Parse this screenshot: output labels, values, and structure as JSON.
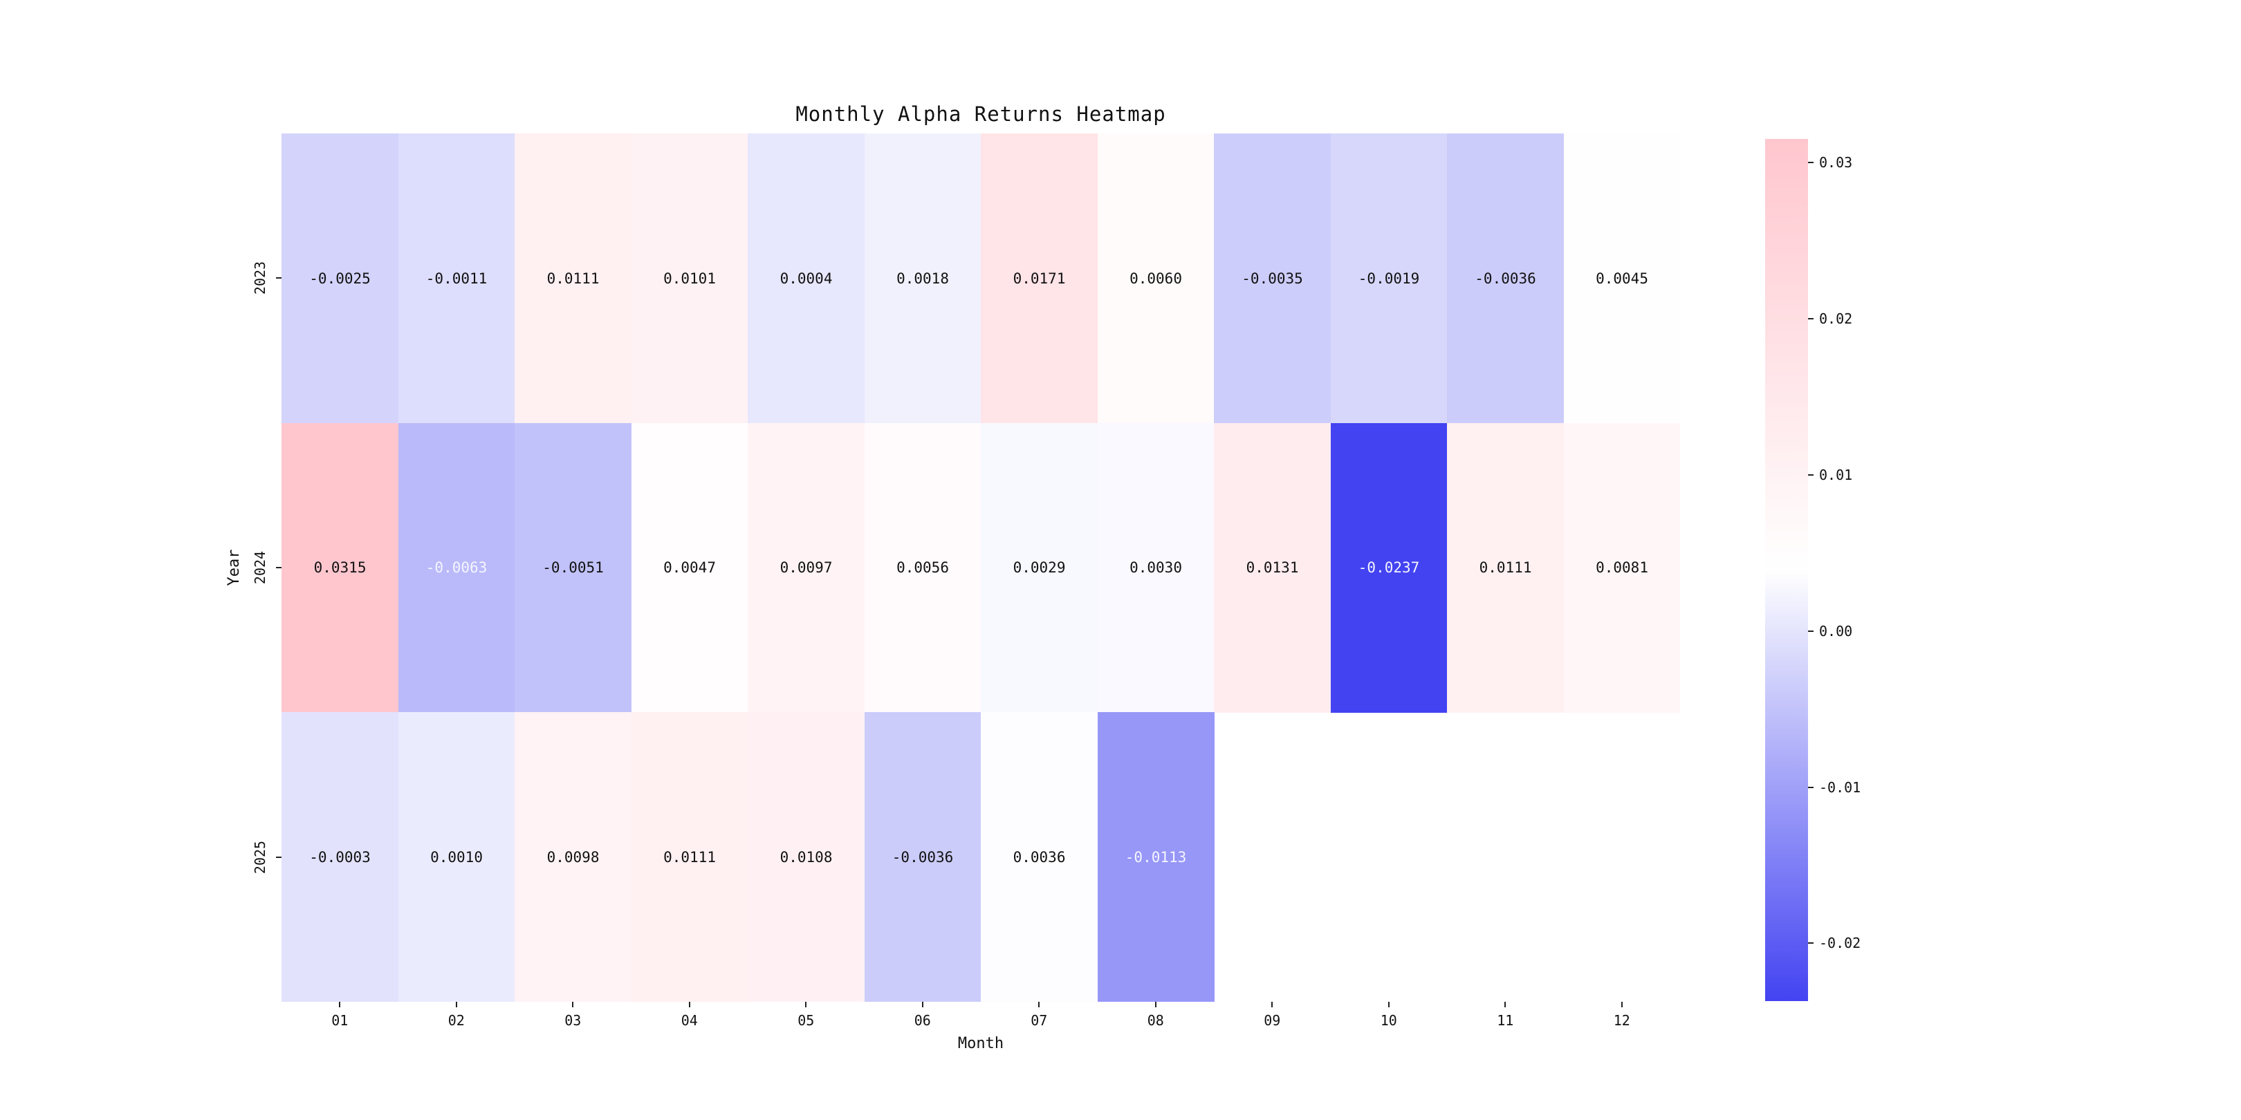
{
  "figure": {
    "background": "#ffffff"
  },
  "chart_data": {
    "type": "heatmap",
    "title": "Monthly Alpha Returns Heatmap",
    "xlabel": "Month",
    "ylabel": "Year",
    "x_categories": [
      "01",
      "02",
      "03",
      "04",
      "05",
      "06",
      "07",
      "08",
      "09",
      "10",
      "11",
      "12"
    ],
    "y_categories": [
      "2023",
      "2024",
      "2025"
    ],
    "values": [
      [
        -0.0025,
        -0.0011,
        0.0111,
        0.0101,
        0.0004,
        0.0018,
        0.0171,
        0.006,
        -0.0035,
        -0.0019,
        -0.0036,
        0.0045
      ],
      [
        0.0315,
        -0.0063,
        -0.0051,
        0.0047,
        0.0097,
        0.0056,
        0.0029,
        0.003,
        0.0131,
        -0.0237,
        0.0111,
        0.0081
      ],
      [
        -0.0003,
        0.001,
        0.0098,
        0.0111,
        0.0108,
        -0.0036,
        0.0036,
        -0.0113,
        null,
        null,
        null,
        null
      ]
    ],
    "value_format_decimals": 4,
    "vmin": -0.0237,
    "vmax": 0.0315,
    "colorbar_ticks": [
      0.03,
      0.02,
      0.01,
      0.0,
      -0.01,
      -0.02
    ],
    "colorbar_tick_decimals": 2,
    "colormap": {
      "low": "#4343f2",
      "mid": "#ffffff",
      "high": "#ffc6ce"
    },
    "annotation_color_dark": "#111111",
    "annotation_color_light": "#f5f5ff",
    "white_text_cells": [
      [
        1,
        1
      ],
      [
        1,
        9
      ],
      [
        2,
        7
      ]
    ],
    "grid": false,
    "legend_position": "colorbar-right"
  }
}
